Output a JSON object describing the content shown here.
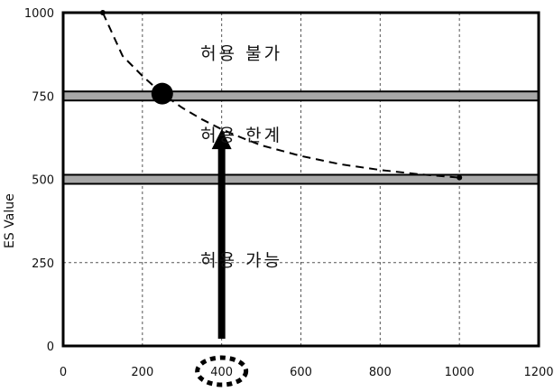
{
  "chart_data": {
    "type": "line",
    "ylabel": "ES Value",
    "xlim": [
      0,
      1200
    ],
    "ylim": [
      0,
      1000
    ],
    "x_ticks": [
      "0",
      "200",
      "400",
      "600",
      "800",
      "1000",
      "1200"
    ],
    "y_ticks": [
      "0",
      "250",
      "500",
      "750",
      "1000"
    ],
    "grid": true,
    "thresholds": [
      500,
      750
    ],
    "zones": [
      {
        "label": "허용 불가",
        "x": 450,
        "y": 860
      },
      {
        "label": "허용 한계",
        "x": 450,
        "y": 615
      },
      {
        "label": "허용 가능",
        "x": 450,
        "y": 240
      }
    ],
    "curve": {
      "style": "dashed",
      "x": [
        100,
        150,
        200,
        250,
        300,
        350,
        400,
        450,
        500,
        600,
        700,
        800,
        900,
        1000
      ],
      "y": [
        1000,
        870,
        810,
        757,
        715,
        680,
        650,
        625,
        602,
        570,
        545,
        528,
        515,
        505
      ]
    },
    "marker": {
      "x": 250,
      "y": 757
    },
    "arrow": {
      "x": 400,
      "from": 0,
      "to": 650
    },
    "highlight_tick": "400"
  }
}
